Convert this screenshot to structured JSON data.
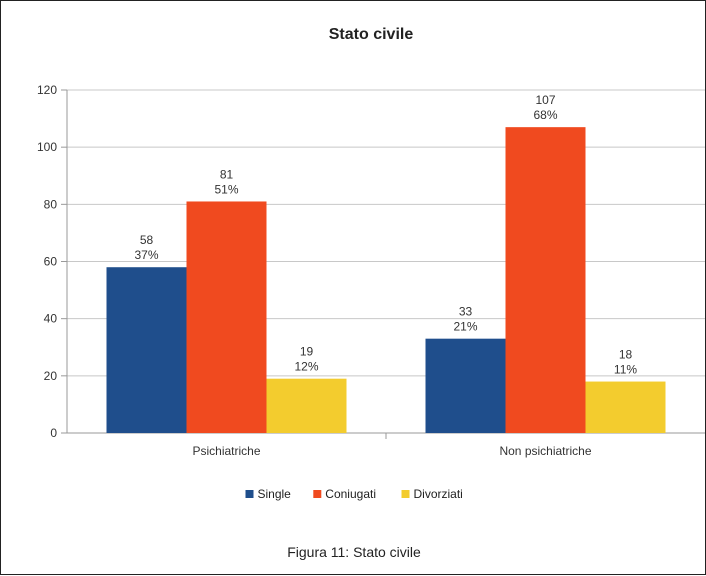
{
  "chart_data": {
    "type": "bar",
    "title": "Stato civile",
    "categories": [
      "Psichiatriche",
      "Non psichiatriche"
    ],
    "series": [
      {
        "name": "Single",
        "color": "#1f4e8c",
        "values": [
          58,
          33
        ],
        "percent_labels": [
          "37%",
          "21%"
        ]
      },
      {
        "name": "Coniugati",
        "color": "#f04a1f",
        "values": [
          81,
          107
        ],
        "percent_labels": [
          "51%",
          "68%"
        ]
      },
      {
        "name": "Divorziati",
        "color": "#f3cc2e",
        "values": [
          19,
          18
        ],
        "percent_labels": [
          "12%",
          "11%"
        ]
      }
    ],
    "ylim": [
      0,
      120
    ],
    "yticks": [
      0,
      20,
      40,
      60,
      80,
      100,
      120
    ],
    "grid": true,
    "legend_position": "bottom"
  },
  "caption": "Figura 11: Stato civile"
}
